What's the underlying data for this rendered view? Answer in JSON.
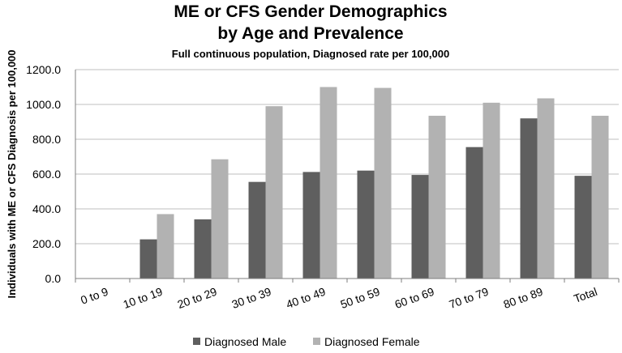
{
  "chart_data": {
    "type": "bar",
    "title_line1": "ME or CFS Gender Demographics",
    "title_line2": "by Age and Prevalence",
    "subtitle": "Full continuous population, Diagnosed rate per 100,000",
    "xlabel": "",
    "ylabel": "Individuals with ME or CFS Diagnosis per 100,000",
    "ylim": [
      0,
      1200
    ],
    "yticks": [
      0,
      200,
      400,
      600,
      800,
      1000,
      1200
    ],
    "ytick_labels": [
      "0.0",
      "200.0",
      "400.0",
      "600.0",
      "800.0",
      "1000.0",
      "1200.0"
    ],
    "categories": [
      "0 to 9",
      "10 to 19",
      "20 to 29",
      "30 to 39",
      "40 to 49",
      "50 to 59",
      "60 to 69",
      "70 to 79",
      "80 to 89",
      "Total"
    ],
    "series": [
      {
        "name": "Diagnosed Male",
        "color": "#5f5f5f",
        "values": [
          0,
          225,
          340,
          555,
          612,
          620,
          595,
          755,
          920,
          590
        ]
      },
      {
        "name": "Diagnosed Female",
        "color": "#b2b2b2",
        "values": [
          0,
          370,
          685,
          990,
          1100,
          1095,
          935,
          1010,
          1035,
          935
        ]
      }
    ],
    "grid": true,
    "legend_position": "bottom"
  }
}
